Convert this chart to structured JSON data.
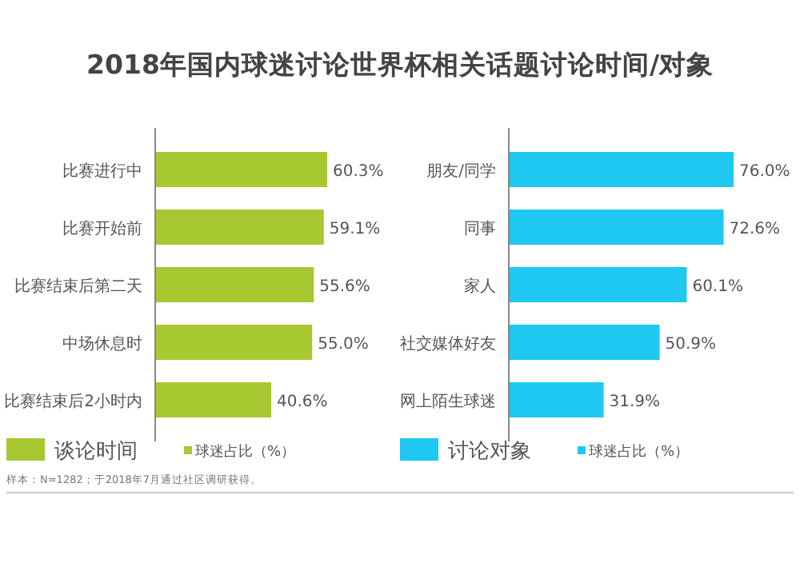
{
  "chart_data": [
    {
      "type": "bar",
      "orientation": "horizontal",
      "title": "2018年国内球迷讨论世界杯相关话题讨论时间/对象",
      "legend_title": "谈论时间",
      "categories": [
        "比赛进行中",
        "比赛开始前",
        "比赛结束后第二天",
        "中场休息时",
        "比赛结束后2小时内"
      ],
      "series": [
        {
          "name": "球迷占比（%）",
          "color": "#a7c831",
          "values": [
            60.3,
            59.1,
            55.6,
            55.0,
            40.6
          ],
          "value_labels": [
            "60.3%",
            "59.1%",
            "55.6%",
            "55.0%",
            "40.6%"
          ]
        }
      ],
      "legend": "bottom",
      "annotations": [
        "样本：N=1282；于2018年7月通过社区调研获得。"
      ]
    },
    {
      "type": "bar",
      "orientation": "horizontal",
      "legend_title": "讨论对象",
      "categories": [
        "朋友/同学",
        "同事",
        "家人",
        "社交媒体好友",
        "网上陌生球迷"
      ],
      "series": [
        {
          "name": "球迷占比（%）",
          "color": "#1ec8f0",
          "values": [
            76.0,
            72.6,
            60.1,
            50.9,
            31.9
          ],
          "value_labels": [
            "76.0%",
            "72.6%",
            "60.1%",
            "50.9%",
            "31.9%"
          ]
        }
      ],
      "legend": "bottom"
    }
  ]
}
